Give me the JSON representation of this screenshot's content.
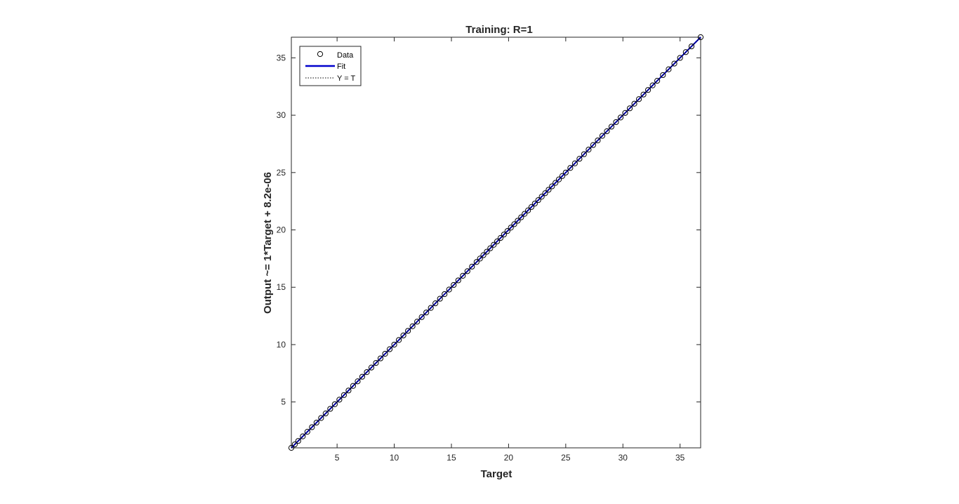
{
  "chart_data": {
    "type": "scatter",
    "title": "Training: R=1",
    "xlabel": "Target",
    "ylabel": "Output ~= 1*Target + 8.2e-06",
    "xlim": [
      1,
      36.8
    ],
    "ylim": [
      1,
      36.8
    ],
    "xticks": [
      5,
      10,
      15,
      20,
      25,
      30,
      35
    ],
    "yticks": [
      5,
      10,
      15,
      20,
      25,
      30,
      35
    ],
    "grid": false,
    "legend": {
      "placement": "top-left",
      "entries": [
        {
          "label": "Data",
          "style": "circle-marker",
          "color": "#000000"
        },
        {
          "label": "Fit",
          "style": "solid-line",
          "color": "#0000cc"
        },
        {
          "label": "Y = T",
          "style": "dotted-line",
          "color": "#000000"
        }
      ]
    },
    "series": [
      {
        "name": "Data",
        "marker": "circle",
        "color": "#000000",
        "points": [
          [
            1.0,
            1.0
          ],
          [
            1.3,
            1.3
          ],
          [
            1.6,
            1.6
          ],
          [
            2.0,
            2.0
          ],
          [
            2.4,
            2.4
          ],
          [
            2.8,
            2.8
          ],
          [
            3.2,
            3.2
          ],
          [
            3.6,
            3.6
          ],
          [
            4.0,
            4.0
          ],
          [
            4.4,
            4.4
          ],
          [
            4.8,
            4.8
          ],
          [
            5.2,
            5.2
          ],
          [
            5.6,
            5.6
          ],
          [
            6.0,
            6.0
          ],
          [
            6.4,
            6.4
          ],
          [
            6.8,
            6.8
          ],
          [
            7.2,
            7.2
          ],
          [
            7.6,
            7.6
          ],
          [
            8.0,
            8.0
          ],
          [
            8.4,
            8.4
          ],
          [
            8.8,
            8.8
          ],
          [
            9.2,
            9.2
          ],
          [
            9.6,
            9.6
          ],
          [
            10.0,
            10.0
          ],
          [
            10.4,
            10.4
          ],
          [
            10.8,
            10.8
          ],
          [
            11.2,
            11.2
          ],
          [
            11.6,
            11.6
          ],
          [
            12.0,
            12.0
          ],
          [
            12.4,
            12.4
          ],
          [
            12.8,
            12.8
          ],
          [
            13.2,
            13.2
          ],
          [
            13.6,
            13.6
          ],
          [
            14.0,
            14.0
          ],
          [
            14.4,
            14.4
          ],
          [
            14.8,
            14.8
          ],
          [
            15.2,
            15.2
          ],
          [
            15.6,
            15.6
          ],
          [
            16.0,
            16.0
          ],
          [
            16.4,
            16.4
          ],
          [
            16.8,
            16.8
          ],
          [
            17.2,
            17.2
          ],
          [
            17.5,
            17.5
          ],
          [
            17.8,
            17.8
          ],
          [
            18.1,
            18.1
          ],
          [
            18.4,
            18.4
          ],
          [
            18.7,
            18.7
          ],
          [
            19.0,
            19.0
          ],
          [
            19.3,
            19.3
          ],
          [
            19.6,
            19.6
          ],
          [
            19.9,
            19.9
          ],
          [
            20.2,
            20.2
          ],
          [
            20.5,
            20.5
          ],
          [
            20.8,
            20.8
          ],
          [
            21.1,
            21.1
          ],
          [
            21.4,
            21.4
          ],
          [
            21.7,
            21.7
          ],
          [
            22.0,
            22.0
          ],
          [
            22.3,
            22.3
          ],
          [
            22.6,
            22.6
          ],
          [
            22.9,
            22.9
          ],
          [
            23.2,
            23.2
          ],
          [
            23.5,
            23.5
          ],
          [
            23.8,
            23.8
          ],
          [
            24.1,
            24.1
          ],
          [
            24.4,
            24.4
          ],
          [
            24.7,
            24.7
          ],
          [
            25.0,
            25.0
          ],
          [
            25.4,
            25.4
          ],
          [
            25.8,
            25.8
          ],
          [
            26.2,
            26.2
          ],
          [
            26.6,
            26.6
          ],
          [
            27.0,
            27.0
          ],
          [
            27.4,
            27.4
          ],
          [
            27.8,
            27.8
          ],
          [
            28.2,
            28.2
          ],
          [
            28.6,
            28.6
          ],
          [
            29.0,
            29.0
          ],
          [
            29.4,
            29.4
          ],
          [
            29.8,
            29.8
          ],
          [
            30.2,
            30.2
          ],
          [
            30.6,
            30.6
          ],
          [
            31.0,
            31.0
          ],
          [
            31.4,
            31.4
          ],
          [
            31.8,
            31.8
          ],
          [
            32.2,
            32.2
          ],
          [
            32.6,
            32.6
          ],
          [
            33.0,
            33.0
          ],
          [
            33.5,
            33.5
          ],
          [
            34.0,
            34.0
          ],
          [
            34.5,
            34.5
          ],
          [
            35.0,
            35.0
          ],
          [
            35.5,
            35.5
          ],
          [
            36.0,
            36.0
          ],
          [
            36.8,
            36.8
          ]
        ]
      },
      {
        "name": "Fit",
        "style": "solid-line",
        "color": "#0000cc",
        "line": [
          [
            1.0,
            1.0
          ],
          [
            36.8,
            36.8
          ]
        ]
      },
      {
        "name": "Y = T",
        "style": "dotted-line",
        "color": "#000000",
        "line": [
          [
            1.0,
            1.0
          ],
          [
            36.8,
            36.8
          ]
        ]
      }
    ]
  }
}
